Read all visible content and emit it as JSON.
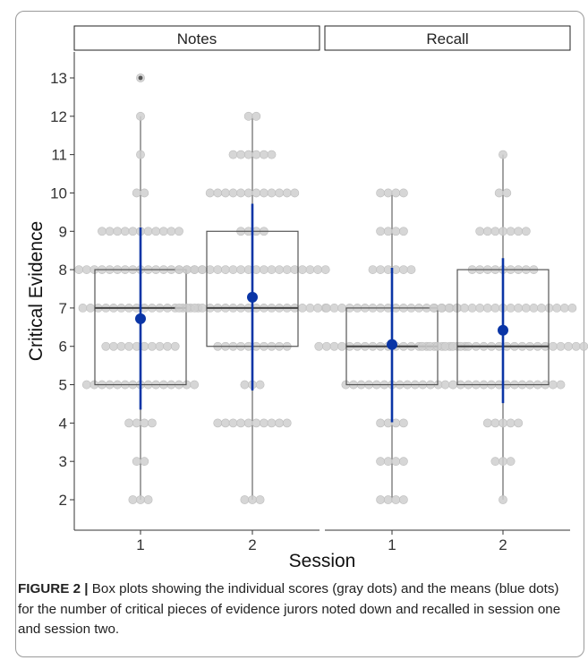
{
  "chart_data": {
    "type": "box",
    "ylabel": "Critical Evidence",
    "xlabel": "Session",
    "yticks": [
      2,
      3,
      4,
      5,
      6,
      7,
      8,
      9,
      10,
      11,
      12,
      13
    ],
    "ylim": [
      1.75,
      13.6
    ],
    "colors": {
      "dots": "#cfcfcf",
      "mean": "#0a35a6",
      "box": "#555555",
      "outlier": "#555555"
    },
    "panels": [
      {
        "title": "Notes",
        "groups": [
          {
            "session": "1",
            "box": {
              "q1": 5,
              "median": 7,
              "q3": 8,
              "whisker_low": 2,
              "whisker_high": 12
            },
            "outliers": [
              13
            ],
            "mean": 6.72,
            "mean_low": 4.35,
            "mean_high": 9.1,
            "scores": [
              {
                "y": 2,
                "n": 3
              },
              {
                "y": 3,
                "n": 2
              },
              {
                "y": 4,
                "n": 4
              },
              {
                "y": 5,
                "n": 15
              },
              {
                "y": 6,
                "n": 10
              },
              {
                "y": 7,
                "n": 16
              },
              {
                "y": 8,
                "n": 17
              },
              {
                "y": 9,
                "n": 11
              },
              {
                "y": 10,
                "n": 2
              },
              {
                "y": 11,
                "n": 1
              },
              {
                "y": 12,
                "n": 1
              },
              {
                "y": 13,
                "n": 1
              }
            ]
          },
          {
            "session": "2",
            "box": {
              "q1": 6,
              "median": 7,
              "q3": 9,
              "whisker_low": 2,
              "whisker_high": 12
            },
            "outliers": [],
            "mean": 7.28,
            "mean_low": 4.85,
            "mean_high": 9.72,
            "scores": [
              {
                "y": 2,
                "n": 3
              },
              {
                "y": 4,
                "n": 10
              },
              {
                "y": 5,
                "n": 3
              },
              {
                "y": 6,
                "n": 10
              },
              {
                "y": 7,
                "n": 20
              },
              {
                "y": 8,
                "n": 20
              },
              {
                "y": 9,
                "n": 4
              },
              {
                "y": 10,
                "n": 12
              },
              {
                "y": 11,
                "n": 6
              },
              {
                "y": 12,
                "n": 2
              }
            ]
          }
        ]
      },
      {
        "title": "Recall",
        "groups": [
          {
            "session": "1",
            "box": {
              "q1": 5,
              "median": 6,
              "q3": 7,
              "whisker_low": 2,
              "whisker_high": 10
            },
            "outliers": [],
            "mean": 6.05,
            "mean_low": 4.02,
            "mean_high": 8.05,
            "scores": [
              {
                "y": 2,
                "n": 4
              },
              {
                "y": 3,
                "n": 4
              },
              {
                "y": 4,
                "n": 4
              },
              {
                "y": 5,
                "n": 13
              },
              {
                "y": 6,
                "n": 20
              },
              {
                "y": 7,
                "n": 18
              },
              {
                "y": 8,
                "n": 6
              },
              {
                "y": 9,
                "n": 4
              },
              {
                "y": 10,
                "n": 4
              }
            ]
          },
          {
            "session": "2",
            "box": {
              "q1": 5,
              "median": 6,
              "q3": 8,
              "whisker_low": 2,
              "whisker_high": 11
            },
            "outliers": [],
            "mean": 6.42,
            "mean_low": 4.52,
            "mean_high": 8.3,
            "scores": [
              {
                "y": 2,
                "n": 1
              },
              {
                "y": 3,
                "n": 3
              },
              {
                "y": 4,
                "n": 5
              },
              {
                "y": 5,
                "n": 16
              },
              {
                "y": 6,
                "n": 22
              },
              {
                "y": 7,
                "n": 19
              },
              {
                "y": 8,
                "n": 9
              },
              {
                "y": 9,
                "n": 7
              },
              {
                "y": 10,
                "n": 2
              },
              {
                "y": 11,
                "n": 1
              }
            ]
          }
        ]
      }
    ]
  },
  "caption": {
    "label": "FIGURE 2",
    "separator": "|",
    "text": "Box plots showing the individual scores (gray dots) and the means (blue dots) for the number of critical pieces of evidence jurors noted down and recalled in session one and session two."
  }
}
